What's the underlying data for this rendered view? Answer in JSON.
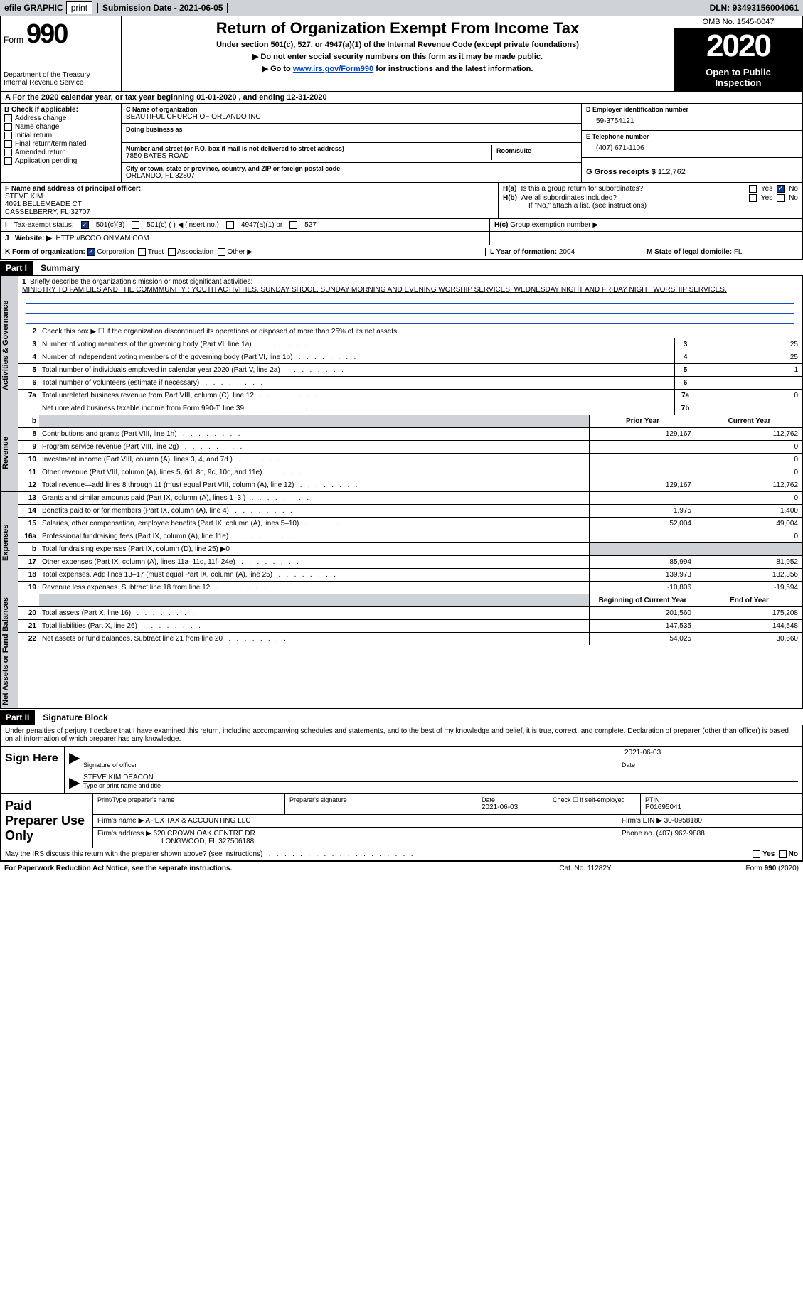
{
  "topbar": {
    "efile": "efile GRAPHIC",
    "print": "print",
    "submission_label": "Submission Date - ",
    "submission_date": "2021-06-05",
    "dln_label": "DLN: ",
    "dln": "93493156004061"
  },
  "header": {
    "form_word": "Form",
    "form_num": "990",
    "dept1": "Department of the Treasury",
    "dept2": "Internal Revenue Service",
    "title": "Return of Organization Exempt From Income Tax",
    "sub1": "Under section 501(c), 527, or 4947(a)(1) of the Internal Revenue Code (except private foundations)",
    "sub2": "▶ Do not enter social security numbers on this form as it may be made public.",
    "sub3_pre": "▶ Go to ",
    "sub3_link": "www.irs.gov/Form990",
    "sub3_post": " for instructions and the latest information.",
    "omb": "OMB No. 1545-0047",
    "year": "2020",
    "open1": "Open to Public",
    "open2": "Inspection"
  },
  "row_a": "A For the 2020 calendar year, or tax year beginning 01-01-2020   , and ending 12-31-2020",
  "check_b": {
    "title": "B Check if applicable:",
    "addr": "Address change",
    "name": "Name change",
    "init": "Initial return",
    "final": "Final return/terminated",
    "amend": "Amended return",
    "app": "Application pending"
  },
  "block_c": {
    "name_lbl": "C Name of organization",
    "name": "BEAUTIFUL CHURCH OF ORLANDO INC",
    "dba_lbl": "Doing business as",
    "street_lbl": "Number and street (or P.O. box if mail is not delivered to street address)",
    "street": "7850 BATES ROAD",
    "room_lbl": "Room/suite",
    "city_lbl": "City or town, state or province, country, and ZIP or foreign postal code",
    "city": "ORLANDO, FL  32807"
  },
  "block_d": {
    "ein_lbl": "D Employer identification number",
    "ein": "59-3754121",
    "tel_lbl": "E Telephone number",
    "tel": "(407) 671-1106",
    "gross_lbl": "G Gross receipts $ ",
    "gross": "112,762"
  },
  "block_f": {
    "lbl": "F Name and address of principal officer:",
    "name": "STEVE KIM",
    "addr1": "4091 BELLEMEADE CT",
    "addr2": "CASSELBERRY, FL  32707"
  },
  "block_h": {
    "ha": "Is this a group return for subordinates?",
    "hb": "Are all subordinates included?",
    "hb_note": "If \"No,\" attach a list. (see instructions)",
    "hc": "Group exemption number ▶",
    "yes": "Yes",
    "no": "No",
    "hlbl_a": "H(a)",
    "hlbl_b": "H(b)",
    "hlbl_c": "H(c)"
  },
  "row_i": {
    "lbl": "Tax-exempt status:",
    "o1": "501(c)(3)",
    "o2": "501(c) (   ) ◀ (insert no.)",
    "o3": "4947(a)(1) or",
    "o4": "527"
  },
  "row_j": {
    "lbl": "Website: ▶",
    "val": "HTTP://BCOO.ONMAM.COM"
  },
  "row_k": {
    "lbl": "K Form of organization:",
    "o1": "Corporation",
    "o2": "Trust",
    "o3": "Association",
    "o4": "Other ▶",
    "l_lbl": "L Year of formation: ",
    "l_val": "2004",
    "m_lbl": "M State of legal domicile: ",
    "m_val": "FL"
  },
  "parts": {
    "p1": "Part I",
    "p1t": "Summary",
    "p2": "Part II",
    "p2t": "Signature Block"
  },
  "sides": {
    "s1": "Activities & Governance",
    "s2": "Revenue",
    "s3": "Expenses",
    "s4": "Net Assets or Fund Balances"
  },
  "mission": {
    "lbl": "Briefly describe the organization's mission or most significant activities:",
    "txt": "MINISTRY TO FAMILIES AND THE COMMMUNITY ; YOUTH ACTIVITIES, SUNDAY SHOOL, SUNDAY MORNING AND EVENING WORSHIP SERVICES; WEDNESDAY NIGHT AND FRIDAY NIGHT WORSHIP SERVICES."
  },
  "lines_gov": [
    {
      "n": "2",
      "t": "Check this box ▶ ☐  if the organization discontinued its operations or disposed of more than 25% of its net assets."
    },
    {
      "n": "3",
      "t": "Number of voting members of the governing body (Part VI, line 1a)",
      "b": "3",
      "v": "25"
    },
    {
      "n": "4",
      "t": "Number of independent voting members of the governing body (Part VI, line 1b)",
      "b": "4",
      "v": "25"
    },
    {
      "n": "5",
      "t": "Total number of individuals employed in calendar year 2020 (Part V, line 2a)",
      "b": "5",
      "v": "1"
    },
    {
      "n": "6",
      "t": "Total number of volunteers (estimate if necessary)",
      "b": "6",
      "v": ""
    },
    {
      "n": "7a",
      "t": "Total unrelated business revenue from Part VIII, column (C), line 12",
      "b": "7a",
      "v": "0"
    },
    {
      "n": "",
      "t": "Net unrelated business taxable income from Form 990-T, line 39",
      "b": "7b",
      "v": ""
    }
  ],
  "col_hdrs": {
    "py": "Prior Year",
    "cy": "Current Year",
    "boy": "Beginning of Current Year",
    "eoy": "End of Year"
  },
  "lines_rev": [
    {
      "n": "8",
      "t": "Contributions and grants (Part VIII, line 1h)",
      "py": "129,167",
      "cy": "112,762"
    },
    {
      "n": "9",
      "t": "Program service revenue (Part VIII, line 2g)",
      "py": "",
      "cy": "0"
    },
    {
      "n": "10",
      "t": "Investment income (Part VIII, column (A), lines 3, 4, and 7d )",
      "py": "",
      "cy": "0"
    },
    {
      "n": "11",
      "t": "Other revenue (Part VIII, column (A), lines 5, 6d, 8c, 9c, 10c, and 11e)",
      "py": "",
      "cy": "0"
    },
    {
      "n": "12",
      "t": "Total revenue—add lines 8 through 11 (must equal Part VIII, column (A), line 12)",
      "py": "129,167",
      "cy": "112,762"
    }
  ],
  "lines_exp": [
    {
      "n": "13",
      "t": "Grants and similar amounts paid (Part IX, column (A), lines 1–3 )",
      "py": "",
      "cy": "0"
    },
    {
      "n": "14",
      "t": "Benefits paid to or for members (Part IX, column (A), line 4)",
      "py": "1,975",
      "cy": "1,400"
    },
    {
      "n": "15",
      "t": "Salaries, other compensation, employee benefits (Part IX, column (A), lines 5–10)",
      "py": "52,004",
      "cy": "49,004"
    },
    {
      "n": "16a",
      "t": "Professional fundraising fees (Part IX, column (A), line 11e)",
      "py": "",
      "cy": "0"
    },
    {
      "n": "b",
      "t": "Total fundraising expenses (Part IX, column (D), line 25) ▶0",
      "shade": true
    },
    {
      "n": "17",
      "t": "Other expenses (Part IX, column (A), lines 11a–11d, 11f–24e)",
      "py": "85,994",
      "cy": "81,952"
    },
    {
      "n": "18",
      "t": "Total expenses. Add lines 13–17 (must equal Part IX, column (A), line 25)",
      "py": "139,973",
      "cy": "132,356"
    },
    {
      "n": "19",
      "t": "Revenue less expenses. Subtract line 18 from line 12",
      "py": "-10,806",
      "cy": "-19,594"
    }
  ],
  "lines_na": [
    {
      "n": "20",
      "t": "Total assets (Part X, line 16)",
      "py": "201,560",
      "cy": "175,208"
    },
    {
      "n": "21",
      "t": "Total liabilities (Part X, line 26)",
      "py": "147,535",
      "cy": "144,548"
    },
    {
      "n": "22",
      "t": "Net assets or fund balances. Subtract line 21 from line 20",
      "py": "54,025",
      "cy": "30,660"
    }
  ],
  "sig": {
    "decl": "Under penalties of perjury, I declare that I have examined this return, including accompanying schedules and statements, and to the best of my knowledge and belief, it is true, correct, and complete. Declaration of preparer (other than officer) is based on all information of which preparer has any knowledge.",
    "sign_here": "Sign Here",
    "sig_lbl": "Signature of officer",
    "date_lbl": "Date",
    "date": "2021-06-03",
    "name": "STEVE KIM  DEACON",
    "name_lbl": "Type or print name and title"
  },
  "paid": {
    "title": "Paid Preparer Use Only",
    "h1": "Print/Type preparer's name",
    "h2": "Preparer's signature",
    "h3_lbl": "Date",
    "h3": "2021-06-03",
    "h4": "Check ☐ if self-employed",
    "h5_lbl": "PTIN",
    "h5": "P01695041",
    "firm_lbl": "Firm's name    ▶",
    "firm": "APEX TAX & ACCOUNTING LLC",
    "ein_lbl": "Firm's EIN ▶",
    "ein": "30-0958180",
    "addr_lbl": "Firm's address ▶",
    "addr1": "620 CROWN OAK CENTRE DR",
    "addr2": "LONGWOOD, FL  327506188",
    "phone_lbl": "Phone no. ",
    "phone": "(407) 962-9888"
  },
  "may_discuss": "May the IRS discuss this return with the preparer shown above? (see instructions)",
  "footer": {
    "l": "For Paperwork Reduction Act Notice, see the separate instructions.",
    "m": "Cat. No. 11282Y",
    "r": "Form 990 (2020)"
  }
}
